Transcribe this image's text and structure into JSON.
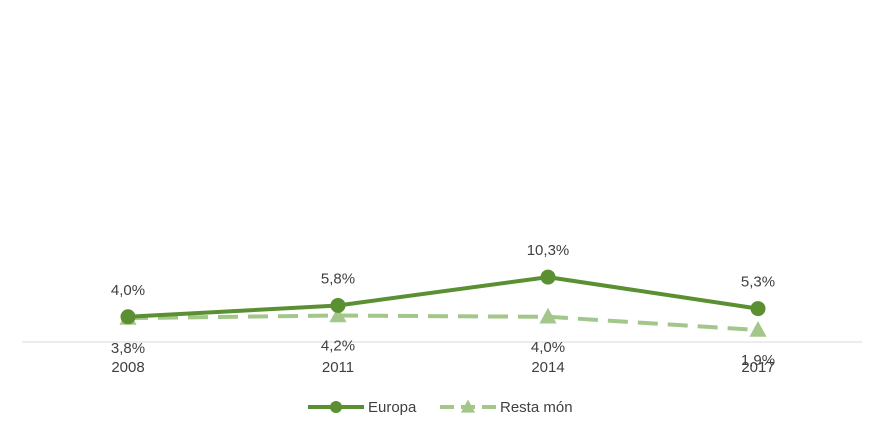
{
  "chart_data": {
    "type": "line",
    "categories": [
      "2008",
      "2011",
      "2014",
      "2017"
    ],
    "series": [
      {
        "name": "Europa",
        "values": [
          4.0,
          5.8,
          10.3,
          5.3
        ],
        "labels": [
          "4,0%",
          "5,8%",
          "10,3%",
          "5,3%"
        ],
        "color": "#5a8f32",
        "style": "solid",
        "marker": "circle"
      },
      {
        "name": "Resta món",
        "values": [
          3.8,
          4.2,
          4.0,
          1.9
        ],
        "labels": [
          "3,8%",
          "4,2%",
          "4,0%",
          "1,9%"
        ],
        "color": "#a3c68a",
        "style": "dashed",
        "marker": "triangle"
      }
    ],
    "title": "",
    "xlabel": "",
    "ylabel": "",
    "ylim": [
      0,
      40
    ],
    "grid": false,
    "legend": "bottom"
  }
}
